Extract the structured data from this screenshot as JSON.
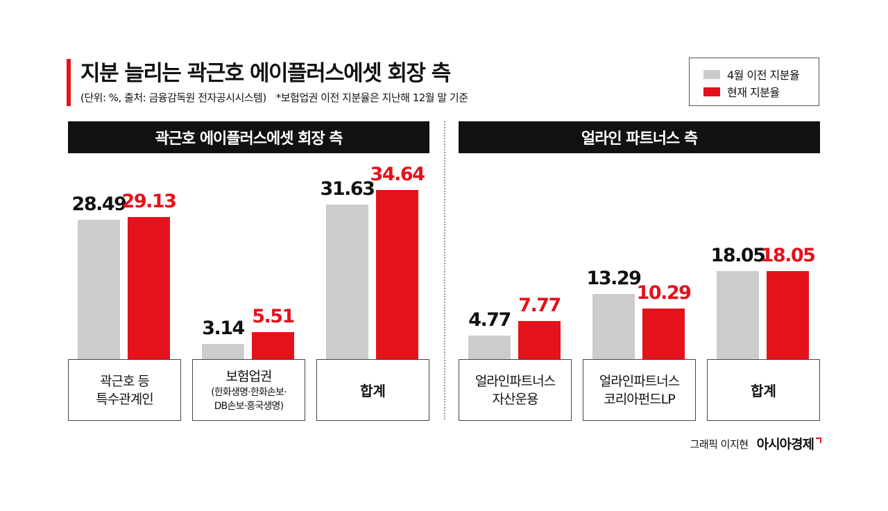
{
  "title": "지분 늘리는 곽근호 에이플러스에셋 회장 측",
  "subtitle": "(단위: %, 출처: 금융감독원 전자공시시스템)",
  "note": "*보험업권 이전 지분율은 지난해 12월 말 기준",
  "legend": {
    "prev_label": "4월 이전 지분율",
    "curr_label": "현재 지분율",
    "prev_color": "#cccccc",
    "curr_color": "#e3121b"
  },
  "credit": {
    "graphic": "그래픽 이지현",
    "brand": "아시아경제"
  },
  "chart_data": [
    {
      "type": "bar",
      "title": "곽근호 에이플러스에셋 회장 측",
      "categories": [
        "곽근호 등 특수관계인",
        "보험업권 (한화생명·한화손보·DB손보·흥국생명)",
        "합계"
      ],
      "category_lines": [
        [
          {
            "text": "곽근호 등",
            "style": "l"
          },
          {
            "text": "특수관계인",
            "style": "l"
          }
        ],
        [
          {
            "text": "보험업권",
            "style": "l"
          },
          {
            "text": "(한화생명·한화손보·",
            "style": "s"
          },
          {
            "text": "DB손보·흥국생명)",
            "style": "s"
          }
        ],
        [
          {
            "text": "합계",
            "style": "b"
          }
        ]
      ],
      "series": [
        {
          "name": "4월 이전 지분율",
          "values": [
            28.49,
            3.14,
            31.63
          ],
          "labels": [
            "28.49",
            "3.14",
            "31.63"
          ]
        },
        {
          "name": "현재 지분율",
          "values": [
            29.13,
            5.51,
            34.64
          ],
          "labels": [
            "29.13",
            "5.51",
            "34.64"
          ]
        }
      ]
    },
    {
      "type": "bar",
      "title": "얼라인 파트너스 측",
      "categories": [
        "얼라인파트너스 자산운용",
        "얼라인파트너스 코리아펀드LP",
        "합계"
      ],
      "category_lines": [
        [
          {
            "text": "얼라인파트너스",
            "style": "l"
          },
          {
            "text": "자산운용",
            "style": "l"
          }
        ],
        [
          {
            "text": "얼라인파트너스",
            "style": "l"
          },
          {
            "text": "코리아펀드LP",
            "style": "l"
          }
        ],
        [
          {
            "text": "합계",
            "style": "b"
          }
        ]
      ],
      "series": [
        {
          "name": "4월 이전 지분율",
          "values": [
            4.77,
            13.29,
            18.05
          ],
          "labels": [
            "4.77",
            "13.29",
            "18.05"
          ]
        },
        {
          "name": "현재 지분율",
          "values": [
            7.77,
            10.29,
            18.05
          ],
          "labels": [
            "7.77",
            "10.29",
            "18.05"
          ]
        }
      ]
    }
  ]
}
